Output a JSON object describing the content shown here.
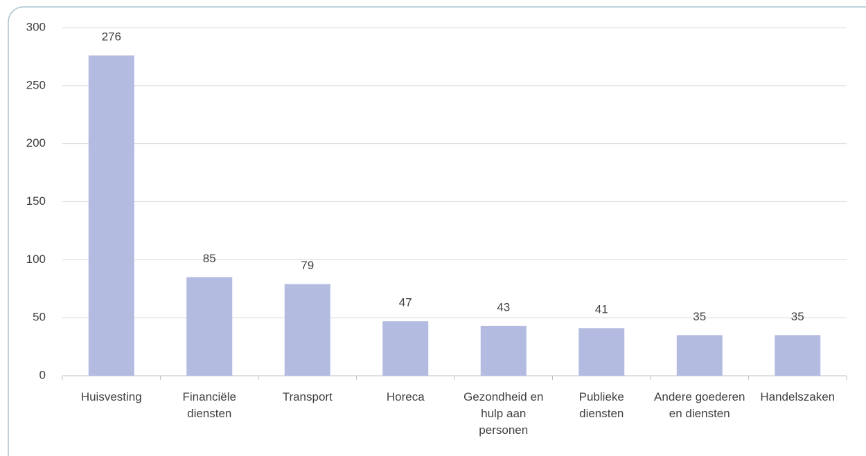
{
  "chart_data": {
    "type": "bar",
    "categories": [
      "Huisvesting",
      "Financiële diensten",
      "Transport",
      "Horeca",
      "Gezondheid en hulp aan personen",
      "Publieke diensten",
      "Andere goederen en diensten",
      "Handelszaken"
    ],
    "values": [
      276,
      85,
      79,
      47,
      43,
      41,
      35,
      35
    ],
    "color": "#b4bbe0",
    "ylim": [
      0,
      300
    ],
    "yticks": [
      0,
      50,
      100,
      150,
      200,
      250,
      300
    ],
    "grid": true
  }
}
